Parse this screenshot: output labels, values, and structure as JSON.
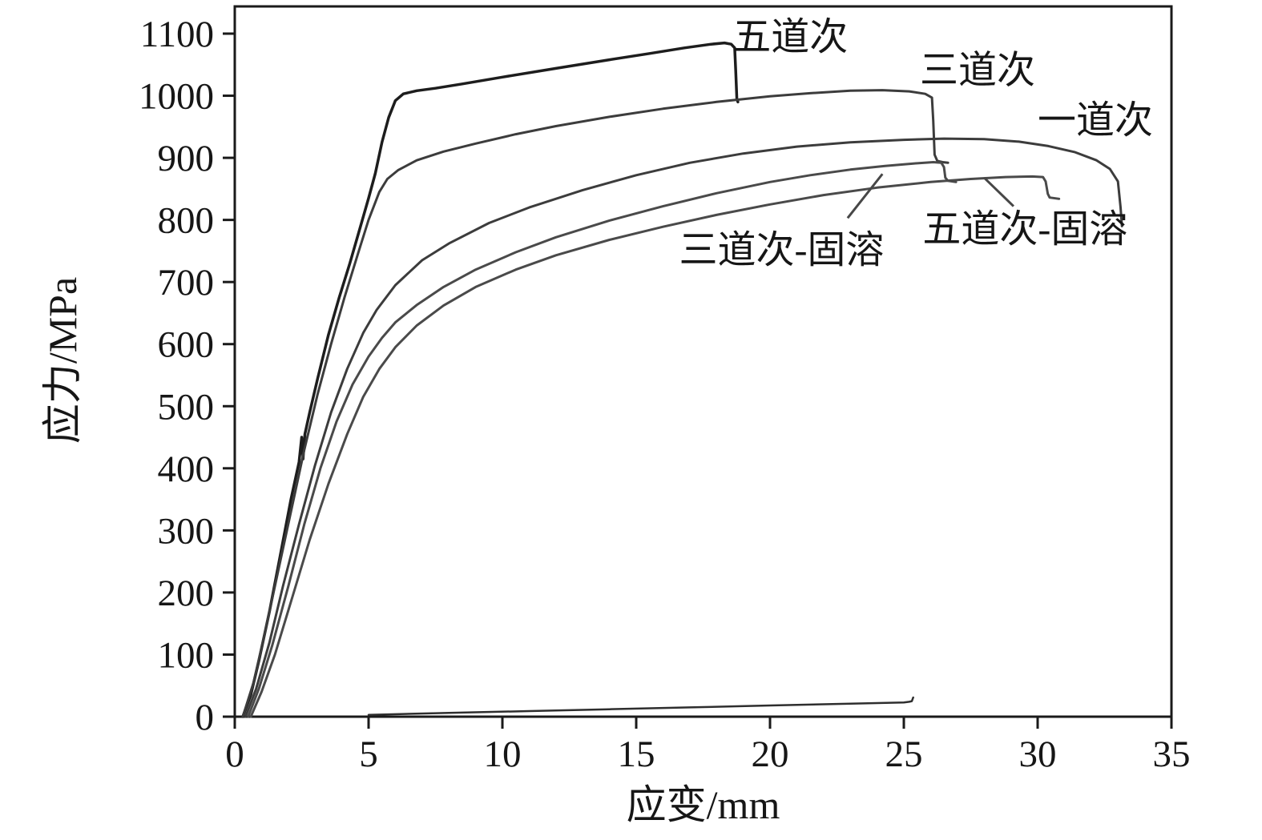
{
  "figure": {
    "background": "#ffffff",
    "frame_color": "#1a1a1a",
    "leader_color": "#474747"
  },
  "chart_data": {
    "type": "line",
    "title": "",
    "xlabel": "应变/mm",
    "ylabel": "应力/MPa",
    "xlim": [
      0,
      35
    ],
    "ylim": [
      0,
      1100
    ],
    "xticks": [
      0,
      5,
      10,
      15,
      20,
      25,
      30,
      35
    ],
    "yticks": [
      0,
      100,
      200,
      300,
      400,
      500,
      600,
      700,
      800,
      900,
      1000,
      1100
    ],
    "grid": false,
    "legend_position": "inline-annotations",
    "series": [
      {
        "id": "wudaoci",
        "name": "五道次",
        "color": "#1d1d1d",
        "width": 3.5,
        "points": [
          [
            0.3,
            0
          ],
          [
            0.6,
            35
          ],
          [
            0.9,
            90
          ],
          [
            1.3,
            170
          ],
          [
            1.7,
            260
          ],
          [
            2.1,
            350
          ],
          [
            2.4,
            410
          ],
          [
            2.5,
            450
          ],
          [
            2.55,
            415
          ],
          [
            2.62,
            455
          ],
          [
            2.8,
            490
          ],
          [
            3.1,
            545
          ],
          [
            3.5,
            615
          ],
          [
            3.9,
            675
          ],
          [
            4.3,
            730
          ],
          [
            4.7,
            790
          ],
          [
            5.0,
            835
          ],
          [
            5.25,
            875
          ],
          [
            5.5,
            925
          ],
          [
            5.75,
            965
          ],
          [
            6.0,
            992
          ],
          [
            6.3,
            1003
          ],
          [
            6.8,
            1008
          ],
          [
            7.5,
            1012
          ],
          [
            8.5,
            1019
          ],
          [
            10,
            1030
          ],
          [
            12,
            1044
          ],
          [
            14,
            1058
          ],
          [
            15.5,
            1068
          ],
          [
            16.8,
            1077
          ],
          [
            17.8,
            1083
          ],
          [
            18.3,
            1085
          ],
          [
            18.55,
            1083
          ],
          [
            18.68,
            1077
          ],
          [
            18.72,
            1040
          ],
          [
            18.76,
            995
          ],
          [
            18.8,
            990
          ]
        ]
      },
      {
        "id": "sandaoci",
        "name": "三道次",
        "color": "#3c3c3c",
        "width": 3,
        "points": [
          [
            0.3,
            0
          ],
          [
            0.7,
            55
          ],
          [
            1.1,
            130
          ],
          [
            1.6,
            230
          ],
          [
            2.1,
            330
          ],
          [
            2.6,
            430
          ],
          [
            3.1,
            520
          ],
          [
            3.6,
            600
          ],
          [
            4.1,
            675
          ],
          [
            4.6,
            745
          ],
          [
            5.0,
            800
          ],
          [
            5.4,
            845
          ],
          [
            5.7,
            866
          ],
          [
            6.1,
            880
          ],
          [
            6.8,
            896
          ],
          [
            7.8,
            910
          ],
          [
            9,
            923
          ],
          [
            10.5,
            938
          ],
          [
            12,
            951
          ],
          [
            14,
            966
          ],
          [
            16,
            979
          ],
          [
            18,
            990
          ],
          [
            20,
            999
          ],
          [
            21.5,
            1004
          ],
          [
            23,
            1008
          ],
          [
            24.2,
            1009
          ],
          [
            25.2,
            1007
          ],
          [
            25.8,
            1003
          ],
          [
            26.05,
            997
          ],
          [
            26.1,
            960
          ],
          [
            26.15,
            905
          ],
          [
            26.25,
            895
          ],
          [
            26.45,
            893
          ],
          [
            26.65,
            892
          ]
        ]
      },
      {
        "id": "yidaoci",
        "name": "一道次",
        "color": "#3c3c3c",
        "width": 3,
        "points": [
          [
            0.4,
            0
          ],
          [
            0.8,
            45
          ],
          [
            1.3,
            120
          ],
          [
            1.8,
            210
          ],
          [
            2.4,
            310
          ],
          [
            3.0,
            405
          ],
          [
            3.6,
            490
          ],
          [
            4.2,
            560
          ],
          [
            4.8,
            618
          ],
          [
            5.3,
            655
          ],
          [
            6.0,
            695
          ],
          [
            7,
            735
          ],
          [
            8,
            762
          ],
          [
            9.5,
            795
          ],
          [
            11,
            820
          ],
          [
            13,
            848
          ],
          [
            15,
            872
          ],
          [
            17,
            892
          ],
          [
            19,
            907
          ],
          [
            21,
            918
          ],
          [
            23,
            925
          ],
          [
            25,
            929
          ],
          [
            26.5,
            931
          ],
          [
            28,
            930
          ],
          [
            29.3,
            926
          ],
          [
            30.4,
            919
          ],
          [
            31.4,
            909
          ],
          [
            32.2,
            896
          ],
          [
            32.7,
            882
          ],
          [
            33.0,
            862
          ],
          [
            33.1,
            820
          ],
          [
            33.15,
            790
          ]
        ]
      },
      {
        "id": "sandaoci-gurong",
        "name": "三道次-固溶",
        "color": "#4a4a4a",
        "width": 3,
        "points": [
          [
            0.5,
            0
          ],
          [
            0.9,
            45
          ],
          [
            1.4,
            115
          ],
          [
            2.0,
            210
          ],
          [
            2.6,
            310
          ],
          [
            3.2,
            400
          ],
          [
            3.8,
            475
          ],
          [
            4.4,
            535
          ],
          [
            5.0,
            580
          ],
          [
            5.5,
            610
          ],
          [
            6.0,
            635
          ],
          [
            6.8,
            663
          ],
          [
            7.8,
            692
          ],
          [
            9,
            720
          ],
          [
            10.5,
            748
          ],
          [
            12,
            772
          ],
          [
            14,
            799
          ],
          [
            16,
            822
          ],
          [
            18,
            843
          ],
          [
            20,
            861
          ],
          [
            21.5,
            872
          ],
          [
            23,
            881
          ],
          [
            24.3,
            887
          ],
          [
            25.4,
            891
          ],
          [
            26.1,
            893
          ],
          [
            26.4,
            892
          ],
          [
            26.5,
            885
          ],
          [
            26.55,
            868
          ],
          [
            26.65,
            863
          ],
          [
            26.95,
            861
          ]
        ]
      },
      {
        "id": "wudaoci-gurong",
        "name": "五道次-固溶",
        "color": "#4a4a4a",
        "width": 3,
        "points": [
          [
            0.6,
            0
          ],
          [
            1.0,
            40
          ],
          [
            1.5,
            100
          ],
          [
            2.1,
            185
          ],
          [
            2.8,
            285
          ],
          [
            3.5,
            375
          ],
          [
            4.2,
            455
          ],
          [
            4.8,
            515
          ],
          [
            5.4,
            560
          ],
          [
            6.0,
            595
          ],
          [
            6.8,
            630
          ],
          [
            7.8,
            662
          ],
          [
            9,
            692
          ],
          [
            10.5,
            720
          ],
          [
            12,
            743
          ],
          [
            14,
            768
          ],
          [
            16,
            789
          ],
          [
            18,
            808
          ],
          [
            20,
            825
          ],
          [
            22,
            840
          ],
          [
            24,
            852
          ],
          [
            26,
            861
          ],
          [
            27.5,
            866
          ],
          [
            28.8,
            869
          ],
          [
            29.8,
            870
          ],
          [
            30.2,
            869
          ],
          [
            30.3,
            862
          ],
          [
            30.38,
            842
          ],
          [
            30.45,
            836
          ],
          [
            30.8,
            834
          ]
        ]
      },
      {
        "id": "baseline-trace",
        "name": "baseline-trace",
        "color": "#2e2e2e",
        "width": 2.5,
        "points": [
          [
            5.0,
            3
          ],
          [
            8,
            6
          ],
          [
            11,
            9
          ],
          [
            14,
            12
          ],
          [
            17,
            15
          ],
          [
            20,
            18
          ],
          [
            23,
            21
          ],
          [
            25.0,
            23
          ],
          [
            25.2,
            24
          ],
          [
            25.3,
            25
          ],
          [
            25.35,
            31
          ]
        ]
      }
    ],
    "annotations": [
      {
        "id": "label-wudaoci",
        "text": "五道次",
        "x": 18.6,
        "y": 1074,
        "anchor": "start"
      },
      {
        "id": "label-sandaoci",
        "text": "三道次",
        "x": 25.6,
        "y": 1021,
        "anchor": "start"
      },
      {
        "id": "label-yidaoci",
        "text": "一道次",
        "x": 30.0,
        "y": 940,
        "anchor": "start"
      },
      {
        "id": "label-wudaoci-gurong",
        "text": "五道次-固溶",
        "x": 25.7,
        "y": 765,
        "anchor": "start"
      },
      {
        "id": "label-sandaoci-gurong",
        "text": "三道次-固溶",
        "x": 16.6,
        "y": 731,
        "anchor": "start"
      }
    ],
    "leaders": [
      {
        "id": "leader-sandaoci-gurong",
        "x1": 22.9,
        "y1": 803,
        "x2": 24.2,
        "y2": 874
      },
      {
        "id": "leader-wudaoci-gurong",
        "x1": 29.1,
        "y1": 822,
        "x2": 28.0,
        "y2": 868
      }
    ]
  }
}
